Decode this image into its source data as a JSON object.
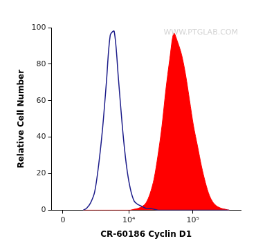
{
  "chart_data": {
    "type": "line",
    "annotation": "WWW.PTGLAB.COM",
    "x_label": "CR-60186 Cyclin D1",
    "y_label": "Relative Cell Number",
    "log": "x",
    "grid": false,
    "xlim": [
      -800,
      560000
    ],
    "xticks": [
      0,
      {
        "value": 10000,
        "label": "10⁴"
      },
      {
        "value": 100000,
        "label": "10⁵"
      }
    ],
    "ylim": [
      0,
      100
    ],
    "yticks": [
      0,
      20,
      40,
      60,
      80,
      100
    ],
    "x": [
      1500,
      1800,
      2200,
      2650,
      3150,
      3700,
      4300,
      5000,
      5800,
      6800,
      7900,
      9100,
      10500,
      12100,
      14000,
      16200,
      18600,
      21500,
      24800,
      28600,
      33000,
      38000,
      43800,
      50500,
      58200,
      67100,
      77400,
      89200,
      102800,
      118700,
      136800,
      157600,
      181800,
      209600,
      241500,
      278600,
      321000,
      370000
    ],
    "series": [
      {
        "type": "line",
        "color": "#1c1c8a",
        "values": [
          0,
          1,
          4,
          10,
          25,
          45,
          70,
          96,
          98,
          72,
          45,
          25,
          12,
          5,
          3,
          2,
          1,
          1,
          0.5,
          0,
          0,
          0,
          0,
          0,
          0,
          0,
          0,
          0,
          0,
          0,
          0,
          0,
          0,
          0,
          0,
          0,
          0,
          0
        ]
      },
      {
        "type": "area",
        "color": "#ff0000",
        "values": [
          0,
          0,
          0,
          0,
          0,
          0,
          0,
          0,
          0,
          0,
          0,
          0,
          0,
          0.5,
          1,
          2,
          4,
          9,
          17,
          30,
          46,
          66,
          83,
          97,
          92,
          85,
          74,
          60,
          46,
          35,
          24,
          15,
          8,
          4,
          2,
          1,
          0.5,
          0
        ]
      }
    ]
  }
}
